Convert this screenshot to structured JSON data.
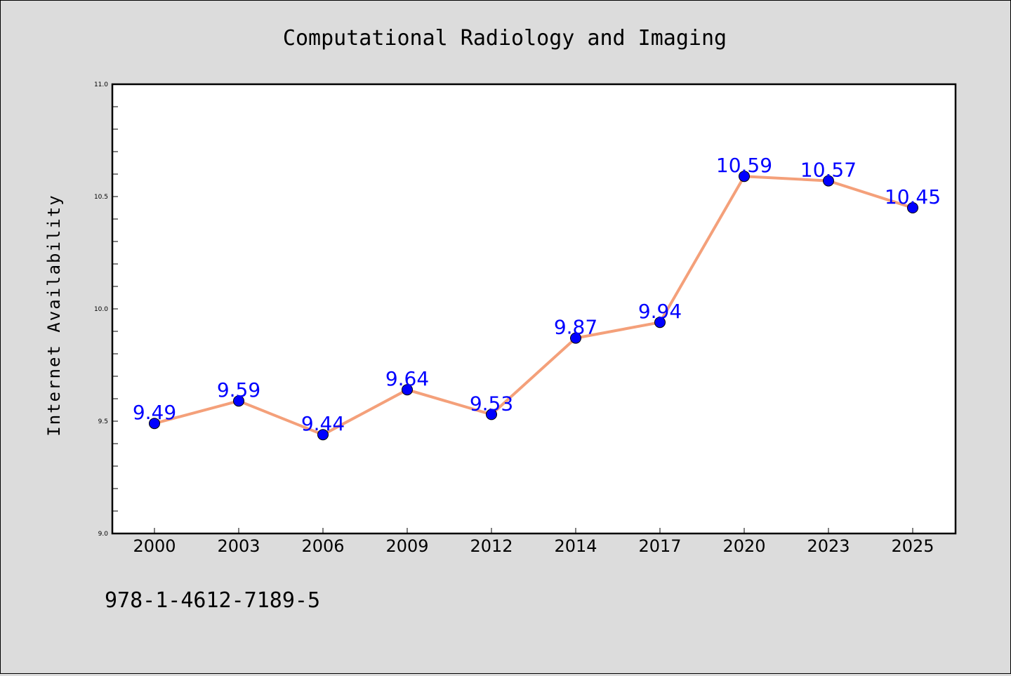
{
  "chart_data": {
    "type": "line",
    "title": "Computational Radiology and Imaging",
    "xlabel": "",
    "ylabel": "Internet Availability",
    "categories": [
      "2000",
      "2003",
      "2006",
      "2009",
      "2012",
      "2014",
      "2017",
      "2020",
      "2023",
      "2025"
    ],
    "series": [
      {
        "values": [
          9.49,
          9.59,
          9.44,
          9.64,
          9.53,
          9.87,
          9.94,
          10.59,
          10.57,
          10.45
        ],
        "data_labels": [
          "9.49",
          "9.59",
          "9.44",
          "9.64",
          "9.53",
          "9.87",
          "9.94",
          "10.59",
          "10.57",
          "10.45"
        ]
      }
    ],
    "ylim": [
      9.0,
      11.0
    ],
    "y_ticks": [
      "9.0",
      "9.5",
      "10.0",
      "10.5",
      "11.0"
    ],
    "grid": false,
    "legend": "none",
    "colors": {
      "line": "#f4a07a",
      "marker": "#0000ff",
      "label": "#0000ff"
    }
  },
  "footer": {
    "code": "978-1-4612-7189-5"
  }
}
